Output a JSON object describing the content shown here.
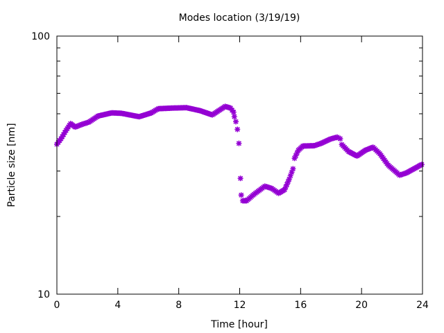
{
  "chart_data": {
    "type": "scatter",
    "title": "Modes location (3/19/19)",
    "xlabel": "Time [hour]",
    "ylabel": "Particle size [nm]",
    "xlim": [
      0,
      24
    ],
    "ylim": [
      10,
      100
    ],
    "yscale": "log",
    "xticks": [
      "0",
      "4",
      "8",
      "12",
      "16",
      "20",
      "24"
    ],
    "yticks": [
      "10",
      "100"
    ],
    "grid": false,
    "marker_color": "#9400D3",
    "series": [
      {
        "name": "modes",
        "x": [
          0,
          0.27,
          0.6,
          0.9,
          1.2,
          1.65,
          2.1,
          2.7,
          3.6,
          4.25,
          5.4,
          6.2,
          6.65,
          7.55,
          8.5,
          9.4,
          10.2,
          11.05,
          11.4,
          11.6,
          11.65,
          11.75,
          11.85,
          11.95,
          12.05,
          12.1,
          12.2,
          12.45,
          12.95,
          13.65,
          14.1,
          14.55,
          14.95,
          15.25,
          15.5,
          15.6,
          15.85,
          16.15,
          16.9,
          17.35,
          17.95,
          18.4,
          18.6,
          18.7,
          19.15,
          19.7,
          20.25,
          20.75,
          21.2,
          21.75,
          22.5,
          22.95,
          23.95
        ],
        "y": [
          38.1,
          40.0,
          43.1,
          45.8,
          44.4,
          45.5,
          46.4,
          49.0,
          50.4,
          50.2,
          48.7,
          50.4,
          52.3,
          52.6,
          52.8,
          51.4,
          49.5,
          53.4,
          52.6,
          50.7,
          48.7,
          46.6,
          43.5,
          38.4,
          28.1,
          24.2,
          23.0,
          23.0,
          24.4,
          26.2,
          25.7,
          24.6,
          25.4,
          27.9,
          30.6,
          33.6,
          36.1,
          37.5,
          37.6,
          38.4,
          39.9,
          40.6,
          40.0,
          38.0,
          35.7,
          34.3,
          36.1,
          37.1,
          35.0,
          31.6,
          28.9,
          29.5,
          31.8
        ]
      }
    ]
  }
}
